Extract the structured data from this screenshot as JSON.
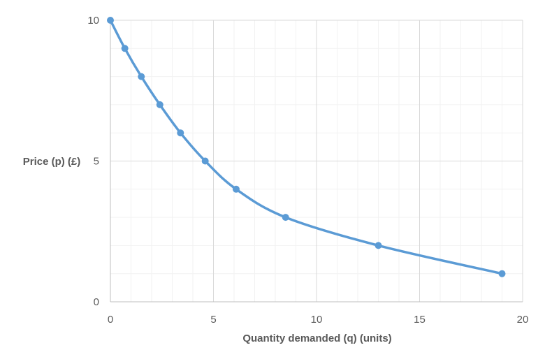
{
  "chart_data": {
    "type": "line",
    "title": "",
    "xlabel": "Quantity demanded (q) (units)",
    "ylabel": "Price (p) (£)",
    "xlim": [
      0,
      20
    ],
    "ylim": [
      0,
      10
    ],
    "x_ticks": [
      "0",
      "5",
      "10",
      "15",
      "20"
    ],
    "y_ticks": [
      "0",
      "5",
      "10"
    ],
    "x_minor_step": 1,
    "y_minor_step": 1,
    "grid": true,
    "smooth": true,
    "markers": true,
    "series": [
      {
        "color": "#5b9bd5",
        "x": [
          0,
          0.7,
          1.5,
          2.4,
          3.4,
          4.6,
          6.1,
          8.5,
          13.0,
          19.0
        ],
        "y": [
          10,
          9,
          8,
          7,
          6,
          5,
          4,
          3,
          2,
          1
        ]
      }
    ]
  }
}
